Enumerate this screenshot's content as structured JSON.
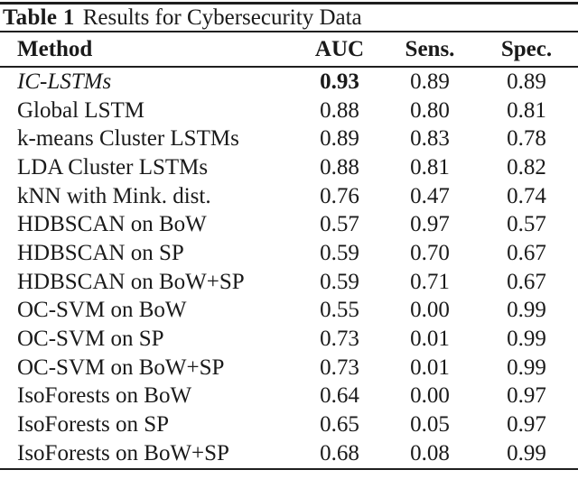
{
  "table": {
    "caption_label": "Table 1",
    "caption_text": "Results for Cybersecurity Data",
    "columns": [
      "Method",
      "AUC",
      "Sens.",
      "Spec."
    ],
    "rows": [
      {
        "method": "IC-LSTMs",
        "auc": "0.93",
        "sens": "0.89",
        "spec": "0.89",
        "method_italic": true,
        "auc_bold": true
      },
      {
        "method": "Global LSTM",
        "auc": "0.88",
        "sens": "0.80",
        "spec": "0.81",
        "method_italic": false,
        "auc_bold": false
      },
      {
        "method": "k-means Cluster LSTMs",
        "auc": "0.89",
        "sens": "0.83",
        "spec": "0.78",
        "method_italic": false,
        "auc_bold": false
      },
      {
        "method": "LDA Cluster LSTMs",
        "auc": "0.88",
        "sens": "0.81",
        "spec": "0.82",
        "method_italic": false,
        "auc_bold": false
      },
      {
        "method": "kNN with Mink. dist.",
        "auc": "0.76",
        "sens": "0.47",
        "spec": "0.74",
        "method_italic": false,
        "auc_bold": false
      },
      {
        "method": "HDBSCAN on BoW",
        "auc": "0.57",
        "sens": "0.97",
        "spec": "0.57",
        "method_italic": false,
        "auc_bold": false
      },
      {
        "method": "HDBSCAN on SP",
        "auc": "0.59",
        "sens": "0.70",
        "spec": "0.67",
        "method_italic": false,
        "auc_bold": false
      },
      {
        "method": "HDBSCAN on BoW+SP",
        "auc": "0.59",
        "sens": "0.71",
        "spec": "0.67",
        "method_italic": false,
        "auc_bold": false
      },
      {
        "method": "OC-SVM on BoW",
        "auc": "0.55",
        "sens": "0.00",
        "spec": "0.99",
        "method_italic": false,
        "auc_bold": false
      },
      {
        "method": "OC-SVM on SP",
        "auc": "0.73",
        "sens": "0.01",
        "spec": "0.99",
        "method_italic": false,
        "auc_bold": false
      },
      {
        "method": "OC-SVM on BoW+SP",
        "auc": "0.73",
        "sens": "0.01",
        "spec": "0.99",
        "method_italic": false,
        "auc_bold": false
      },
      {
        "method": "IsoForests on BoW",
        "auc": "0.64",
        "sens": "0.00",
        "spec": "0.97",
        "method_italic": false,
        "auc_bold": false
      },
      {
        "method": "IsoForests on SP",
        "auc": "0.65",
        "sens": "0.05",
        "spec": "0.97",
        "method_italic": false,
        "auc_bold": false
      },
      {
        "method": "IsoForests on BoW+SP",
        "auc": "0.68",
        "sens": "0.08",
        "spec": "0.99",
        "method_italic": false,
        "auc_bold": false
      }
    ],
    "colors": {
      "text": "#1a1a1a",
      "rule": "#1f1f1f",
      "background": "#ffffff"
    }
  }
}
